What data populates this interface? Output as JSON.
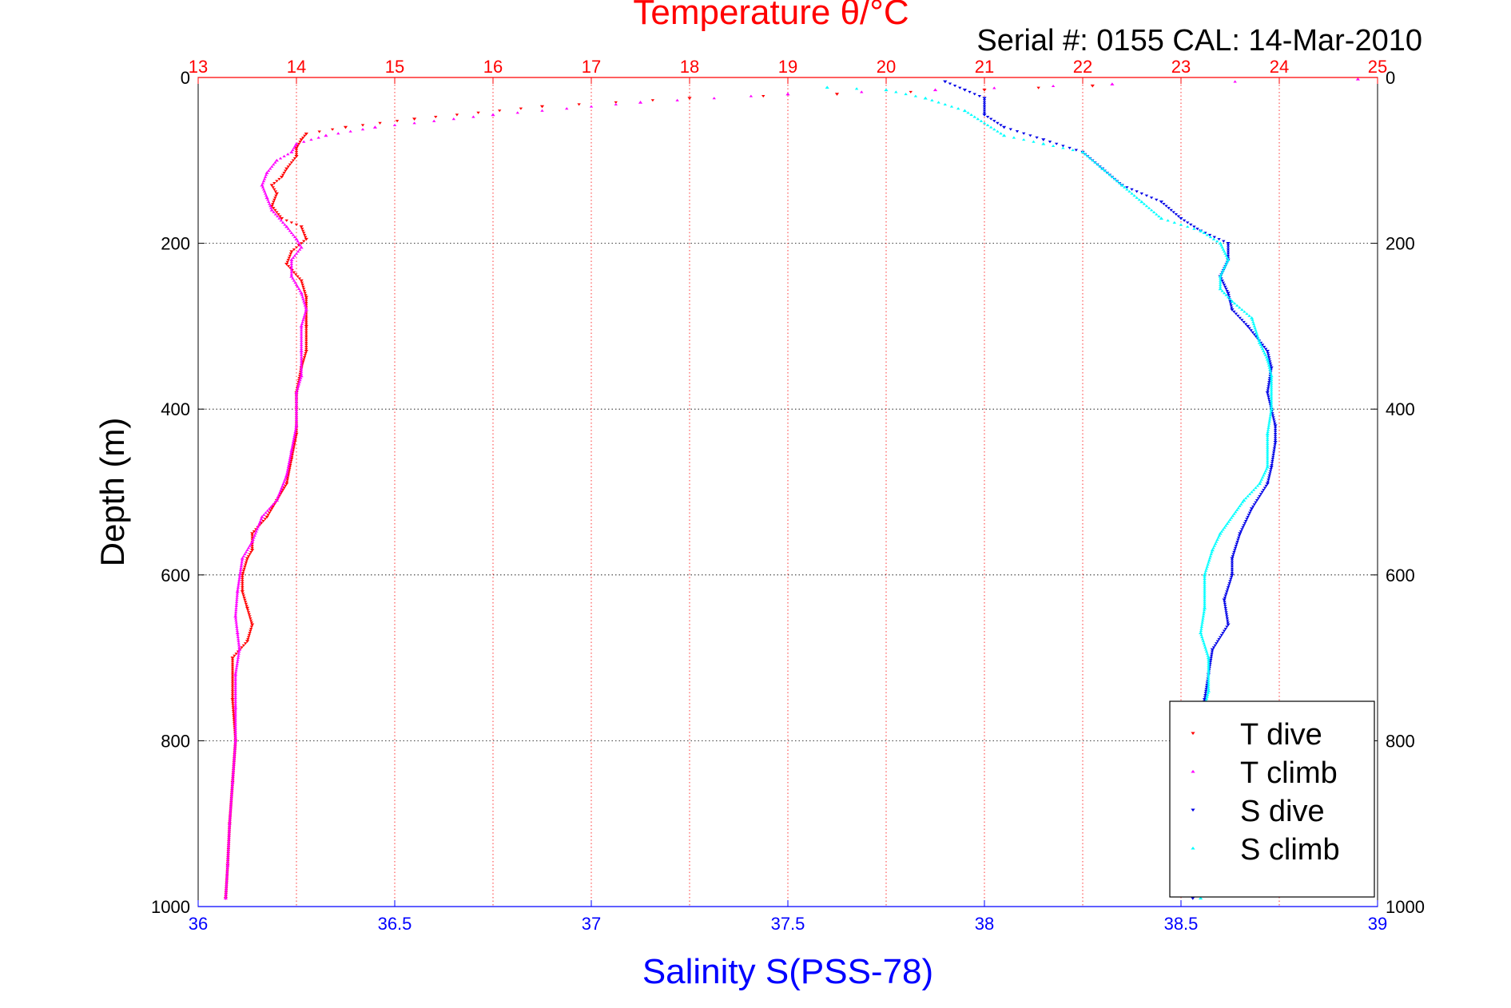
{
  "chart_data": {
    "type": "scatter",
    "title": "Temperature θ/°C",
    "subtitle": "Serial #: 0155  CAL: 14-Mar-2010",
    "xlabel": "Salinity S(PSS-78)",
    "ylabel": "Depth (m)",
    "y_reversed": true,
    "ylim": [
      0,
      1000
    ],
    "y_ticks": [
      0,
      200,
      400,
      600,
      800,
      1000
    ],
    "x_bottom": {
      "label": "Salinity S(PSS-78)",
      "lim": [
        36,
        39
      ],
      "ticks": [
        36,
        36.5,
        37,
        37.5,
        38,
        38.5,
        39
      ],
      "tick_labels": [
        "36",
        "36.5",
        "37",
        "37.5",
        "38",
        "38.5",
        "39"
      ],
      "color": "#0000ff"
    },
    "x_top": {
      "label": "Temperature θ/°C",
      "lim": [
        13,
        25
      ],
      "ticks": [
        13,
        14,
        15,
        16,
        17,
        18,
        19,
        20,
        21,
        22,
        23,
        24,
        25
      ],
      "tick_labels": [
        "13",
        "14",
        "15",
        "16",
        "17",
        "18",
        "19",
        "20",
        "21",
        "22",
        "23",
        "24",
        "25"
      ],
      "color": "#ff0000"
    },
    "grid": true,
    "legend_position": "bottom-right",
    "series": [
      {
        "name": "T dive",
        "axis": "top",
        "color": "#ff0000",
        "marker": "triangle-down",
        "points": [
          [
            22.1,
            10
          ],
          [
            21.0,
            15
          ],
          [
            19.5,
            20
          ],
          [
            18.0,
            25
          ],
          [
            16.5,
            35
          ],
          [
            15.2,
            50
          ],
          [
            14.5,
            60
          ],
          [
            14.1,
            68
          ],
          [
            14.05,
            75
          ],
          [
            14.0,
            85
          ],
          [
            14.0,
            95
          ],
          [
            13.9,
            110
          ],
          [
            13.85,
            120
          ],
          [
            13.75,
            130
          ],
          [
            13.8,
            140
          ],
          [
            13.75,
            155
          ],
          [
            13.85,
            170
          ],
          [
            14.05,
            180
          ],
          [
            14.1,
            195
          ],
          [
            13.95,
            210
          ],
          [
            13.9,
            225
          ],
          [
            14.05,
            245
          ],
          [
            14.1,
            265
          ],
          [
            14.1,
            300
          ],
          [
            14.1,
            330
          ],
          [
            14.05,
            350
          ],
          [
            14.0,
            380
          ],
          [
            14.0,
            400
          ],
          [
            14.0,
            430
          ],
          [
            13.95,
            460
          ],
          [
            13.9,
            490
          ],
          [
            13.8,
            510
          ],
          [
            13.7,
            530
          ],
          [
            13.55,
            550
          ],
          [
            13.55,
            570
          ],
          [
            13.5,
            580
          ],
          [
            13.45,
            600
          ],
          [
            13.45,
            620
          ],
          [
            13.5,
            640
          ],
          [
            13.55,
            660
          ],
          [
            13.5,
            680
          ],
          [
            13.35,
            700
          ],
          [
            13.35,
            750
          ],
          [
            13.38,
            800
          ],
          [
            13.35,
            850
          ],
          [
            13.32,
            900
          ],
          [
            13.3,
            950
          ],
          [
            13.28,
            990
          ]
        ]
      },
      {
        "name": "T climb",
        "axis": "top",
        "color": "#ff00ff",
        "marker": "triangle-up",
        "points": [
          [
            24.8,
            2
          ],
          [
            22.3,
            8
          ],
          [
            20.5,
            15
          ],
          [
            19.0,
            20
          ],
          [
            17.5,
            30
          ],
          [
            16.0,
            45
          ],
          [
            14.8,
            60
          ],
          [
            14.3,
            70
          ],
          [
            14.0,
            80
          ],
          [
            13.95,
            90
          ],
          [
            13.8,
            100
          ],
          [
            13.7,
            115
          ],
          [
            13.65,
            130
          ],
          [
            13.7,
            145
          ],
          [
            13.75,
            160
          ],
          [
            13.9,
            180
          ],
          [
            14.0,
            195
          ],
          [
            14.05,
            205
          ],
          [
            13.95,
            220
          ],
          [
            13.95,
            240
          ],
          [
            14.05,
            260
          ],
          [
            14.1,
            280
          ],
          [
            14.05,
            300
          ],
          [
            14.05,
            330
          ],
          [
            14.05,
            360
          ],
          [
            14.0,
            380
          ],
          [
            14.0,
            420
          ],
          [
            13.95,
            450
          ],
          [
            13.9,
            480
          ],
          [
            13.8,
            510
          ],
          [
            13.65,
            530
          ],
          [
            13.55,
            560
          ],
          [
            13.45,
            580
          ],
          [
            13.4,
            620
          ],
          [
            13.38,
            650
          ],
          [
            13.4,
            670
          ],
          [
            13.42,
            690
          ],
          [
            13.38,
            720
          ],
          [
            13.38,
            760
          ],
          [
            13.38,
            800
          ],
          [
            13.35,
            850
          ],
          [
            13.32,
            900
          ],
          [
            13.3,
            950
          ],
          [
            13.28,
            990
          ]
        ]
      },
      {
        "name": "S dive",
        "axis": "bottom",
        "color": "#0000e6",
        "marker": "triangle-down",
        "points": [
          [
            37.9,
            5
          ],
          [
            37.95,
            15
          ],
          [
            38.0,
            25
          ],
          [
            38.0,
            45
          ],
          [
            38.05,
            60
          ],
          [
            38.15,
            75
          ],
          [
            38.25,
            90
          ],
          [
            38.3,
            110
          ],
          [
            38.35,
            130
          ],
          [
            38.45,
            150
          ],
          [
            38.5,
            170
          ],
          [
            38.55,
            185
          ],
          [
            38.62,
            200
          ],
          [
            38.62,
            220
          ],
          [
            38.6,
            240
          ],
          [
            38.62,
            260
          ],
          [
            38.63,
            280
          ],
          [
            38.67,
            300
          ],
          [
            38.72,
            330
          ],
          [
            38.73,
            350
          ],
          [
            38.72,
            380
          ],
          [
            38.73,
            400
          ],
          [
            38.74,
            420
          ],
          [
            38.74,
            440
          ],
          [
            38.73,
            470
          ],
          [
            38.72,
            490
          ],
          [
            38.68,
            520
          ],
          [
            38.65,
            550
          ],
          [
            38.63,
            580
          ],
          [
            38.63,
            600
          ],
          [
            38.61,
            630
          ],
          [
            38.62,
            660
          ],
          [
            38.58,
            690
          ],
          [
            38.57,
            720
          ],
          [
            38.56,
            750
          ],
          [
            38.55,
            800
          ],
          [
            38.55,
            850
          ],
          [
            38.54,
            900
          ],
          [
            38.54,
            950
          ],
          [
            38.53,
            990
          ]
        ]
      },
      {
        "name": "S climb",
        "axis": "bottom",
        "color": "#00ffff",
        "marker": "triangle-up",
        "points": [
          [
            37.6,
            12
          ],
          [
            37.75,
            15
          ],
          [
            37.85,
            25
          ],
          [
            37.95,
            40
          ],
          [
            38.05,
            70
          ],
          [
            38.15,
            80
          ],
          [
            38.25,
            90
          ],
          [
            38.3,
            110
          ],
          [
            38.35,
            130
          ],
          [
            38.4,
            150
          ],
          [
            38.45,
            170
          ],
          [
            38.55,
            185
          ],
          [
            38.6,
            200
          ],
          [
            38.62,
            220
          ],
          [
            38.6,
            240
          ],
          [
            38.6,
            255
          ],
          [
            38.63,
            270
          ],
          [
            38.68,
            290
          ],
          [
            38.7,
            320
          ],
          [
            38.72,
            340
          ],
          [
            38.73,
            360
          ],
          [
            38.73,
            400
          ],
          [
            38.72,
            430
          ],
          [
            38.72,
            470
          ],
          [
            38.7,
            490
          ],
          [
            38.66,
            510
          ],
          [
            38.6,
            550
          ],
          [
            38.58,
            570
          ],
          [
            38.56,
            600
          ],
          [
            38.56,
            640
          ],
          [
            38.55,
            670
          ],
          [
            38.57,
            700
          ],
          [
            38.57,
            740
          ],
          [
            38.55,
            780
          ],
          [
            38.55,
            820
          ],
          [
            38.55,
            860
          ],
          [
            38.54,
            900
          ],
          [
            38.54,
            950
          ],
          [
            38.55,
            990
          ]
        ]
      }
    ]
  }
}
